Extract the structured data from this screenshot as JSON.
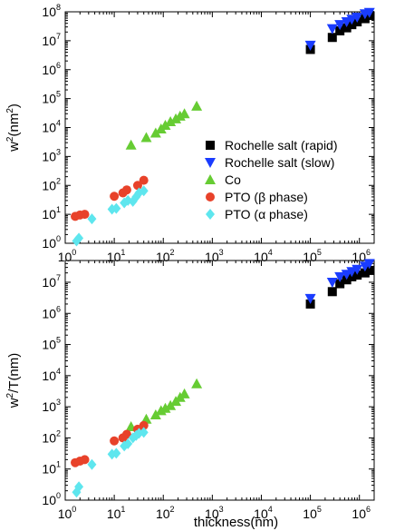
{
  "chart_data": [
    {
      "type": "scatter",
      "xlabel": "",
      "ylabel_parts": [
        "w",
        "2",
        "(nm",
        "2",
        ")"
      ],
      "xscale": "log",
      "yscale": "log",
      "xlim": [
        1,
        2000000
      ],
      "ylim": [
        1,
        100000000
      ],
      "x_tick_exponents": [
        0,
        1,
        2,
        3,
        4,
        5,
        6
      ],
      "y_tick_exponents": [
        0,
        1,
        2,
        3,
        4,
        5,
        6,
        7,
        8
      ],
      "tick_base": "10",
      "legend": "inside, middle-right",
      "series": [
        {
          "name": "Rochelle salt (rapid)",
          "marker": "square",
          "color": "#000000",
          "points": [
            [
              100000,
              5000000
            ],
            [
              280000,
              13000000
            ],
            [
              400000,
              22000000
            ],
            [
              550000,
              28000000
            ],
            [
              700000,
              36000000
            ],
            [
              900000,
              45000000
            ],
            [
              1300000,
              58000000
            ],
            [
              1600000,
              75000000
            ]
          ]
        },
        {
          "name": "Rochelle salt (slow)",
          "marker": "triangle-down",
          "color": "#1a3cff",
          "points": [
            [
              100000,
              7000000
            ],
            [
              280000,
              26000000
            ],
            [
              400000,
              36000000
            ],
            [
              550000,
              45000000
            ],
            [
              700000,
              55000000
            ],
            [
              900000,
              65000000
            ],
            [
              1300000,
              85000000
            ],
            [
              1600000,
              95000000
            ]
          ]
        },
        {
          "name": "Co",
          "marker": "triangle-up",
          "color": "#66cc33",
          "points": [
            [
              22,
              2500
            ],
            [
              45,
              4500
            ],
            [
              70,
              6500
            ],
            [
              90,
              9000
            ],
            [
              110,
              12000
            ],
            [
              140,
              16000
            ],
            [
              180,
              20000
            ],
            [
              220,
              25000
            ],
            [
              270,
              30000
            ],
            [
              480,
              55000
            ]
          ]
        },
        {
          "name": "PTO (β phase)",
          "marker": "circle",
          "color": "#e8422a",
          "points": [
            [
              1.6,
              8.5
            ],
            [
              2,
              9.5
            ],
            [
              2.5,
              10
            ],
            [
              10,
              42
            ],
            [
              15,
              55
            ],
            [
              18,
              70
            ],
            [
              30,
              100
            ],
            [
              40,
              150
            ]
          ]
        },
        {
          "name": "PTO (α phase)",
          "marker": "diamond",
          "color": "#5ee6ee",
          "points": [
            [
              1.7,
              1.2
            ],
            [
              1.9,
              1.5
            ],
            [
              3.5,
              7
            ],
            [
              9,
              15
            ],
            [
              11,
              16
            ],
            [
              16,
              25
            ],
            [
              19,
              30
            ],
            [
              24,
              28
            ],
            [
              28,
              40
            ],
            [
              32,
              55
            ],
            [
              40,
              65
            ]
          ]
        }
      ]
    },
    {
      "type": "scatter",
      "xlabel": "thickness(nm)",
      "ylabel_parts": [
        "w",
        "2",
        "/T(nm)"
      ],
      "xscale": "log",
      "yscale": "log",
      "xlim": [
        1,
        2000000
      ],
      "ylim": [
        1,
        50000000
      ],
      "x_tick_exponents": [
        0,
        1,
        2,
        3,
        4,
        5,
        6
      ],
      "y_tick_exponents": [
        0,
        1,
        2,
        3,
        4,
        5,
        6,
        7
      ],
      "tick_base": "10",
      "series": [
        {
          "name": "Rochelle salt (rapid)",
          "marker": "square",
          "color": "#000000",
          "points": [
            [
              100000,
              2000000
            ],
            [
              280000,
              5000000
            ],
            [
              400000,
              9000000
            ],
            [
              550000,
              12000000
            ],
            [
              700000,
              15000000
            ],
            [
              900000,
              17000000
            ],
            [
              1300000,
              20000000
            ],
            [
              1600000,
              24000000
            ]
          ]
        },
        {
          "name": "Rochelle salt (slow)",
          "marker": "triangle-down",
          "color": "#1a3cff",
          "points": [
            [
              100000,
              3000000
            ],
            [
              280000,
              10000000
            ],
            [
              400000,
              15000000
            ],
            [
              550000,
              18000000
            ],
            [
              700000,
              22000000
            ],
            [
              900000,
              26000000
            ],
            [
              1300000,
              33000000
            ],
            [
              1600000,
              40000000
            ]
          ]
        },
        {
          "name": "Co",
          "marker": "triangle-up",
          "color": "#66cc33",
          "points": [
            [
              22,
              230
            ],
            [
              45,
              400
            ],
            [
              70,
              550
            ],
            [
              90,
              750
            ],
            [
              110,
              900
            ],
            [
              140,
              1100
            ],
            [
              180,
              1500
            ],
            [
              220,
              2000
            ],
            [
              270,
              2600
            ],
            [
              480,
              5500
            ]
          ]
        },
        {
          "name": "PTO (β phase)",
          "marker": "circle",
          "color": "#e8422a",
          "points": [
            [
              1.6,
              16
            ],
            [
              2,
              18
            ],
            [
              2.5,
              20
            ],
            [
              10,
              80
            ],
            [
              15,
              100
            ],
            [
              18,
              130
            ],
            [
              30,
              190
            ],
            [
              40,
              250
            ]
          ]
        },
        {
          "name": "PTO (α phase)",
          "marker": "diamond",
          "color": "#5ee6ee",
          "points": [
            [
              1.7,
              1.8
            ],
            [
              1.9,
              2.7
            ],
            [
              3.5,
              14
            ],
            [
              9,
              30
            ],
            [
              11,
              32
            ],
            [
              16,
              55
            ],
            [
              19,
              65
            ],
            [
              24,
              100
            ],
            [
              28,
              120
            ],
            [
              32,
              140
            ],
            [
              40,
              150
            ]
          ]
        }
      ]
    }
  ]
}
